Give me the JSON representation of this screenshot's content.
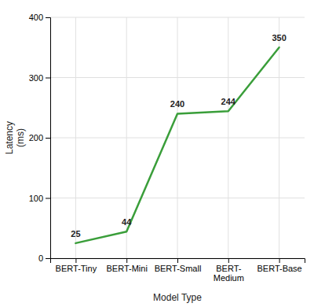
{
  "chart_data": {
    "type": "line",
    "categories": [
      "BERT-Tiny",
      "BERT-Mini",
      "BERT-Small",
      "BERT-\nMedium",
      "BERT-Base"
    ],
    "values": [
      25,
      44,
      240,
      244,
      350
    ],
    "color": "#3a9e3a",
    "data_labels": true,
    "xlabel": "Model Type",
    "ylabel": "Latency\n(ms)",
    "ylim": [
      0,
      400
    ],
    "yticks": [
      0,
      100,
      200,
      300,
      400
    ],
    "grid": true
  }
}
